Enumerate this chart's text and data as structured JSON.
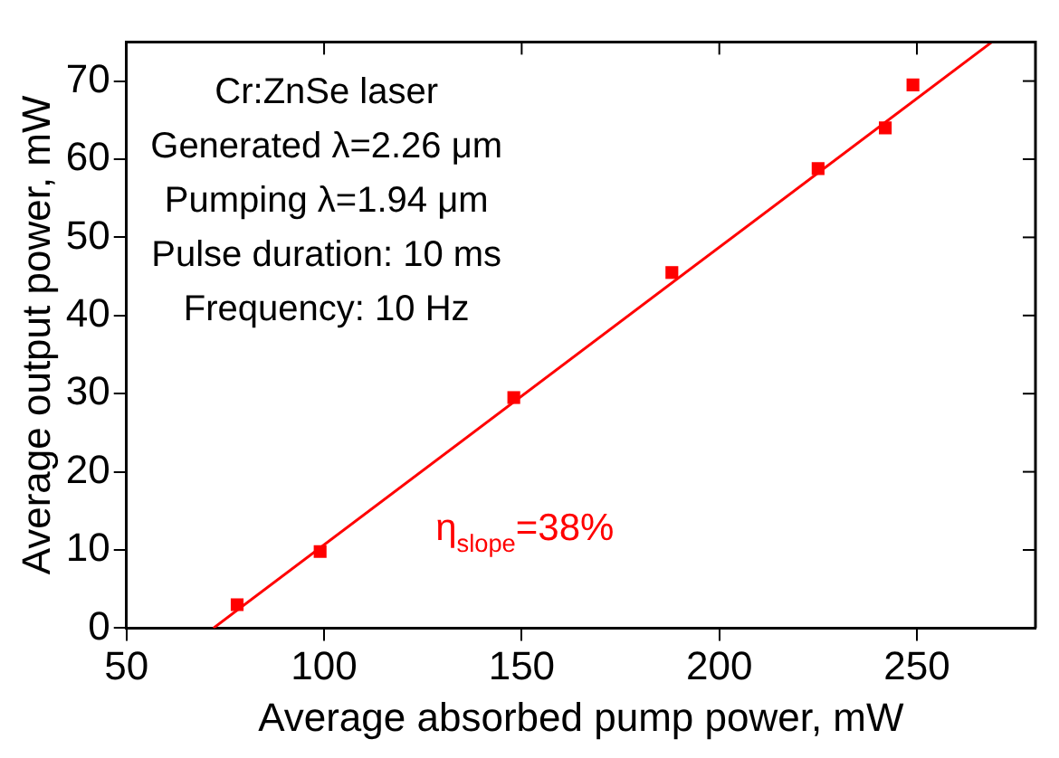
{
  "chart_data": {
    "type": "scatter",
    "xlabel": "Average absorbed pump power, mW",
    "ylabel": "Average output power, mW",
    "xlim": [
      50,
      280
    ],
    "xticks": [
      50,
      100,
      150,
      200,
      250
    ],
    "ylim": [
      0,
      75
    ],
    "yticks": [
      0,
      10,
      20,
      30,
      40,
      50,
      60,
      70
    ],
    "grid": false,
    "legend": false,
    "marker": "square",
    "series": [
      {
        "type": "scatter",
        "color": "#ff0000",
        "x": [
          78,
          99,
          148,
          188,
          225,
          242,
          249
        ],
        "values": [
          3,
          9.8,
          29.5,
          45.5,
          58.8,
          64,
          69.5
        ]
      },
      {
        "type": "line",
        "color": "#ff0000",
        "marker": "none",
        "x": [
          72,
          269
        ],
        "values": [
          0,
          75
        ]
      }
    ],
    "annotations": [
      "Cr:ZnSe laser",
      "Generated λ=2.26 μm",
      "Pumping λ=1.94 μm",
      "Pulse duration: 10 ms",
      "Frequency: 10 Hz",
      "η$_{slope}$=38%"
    ]
  }
}
